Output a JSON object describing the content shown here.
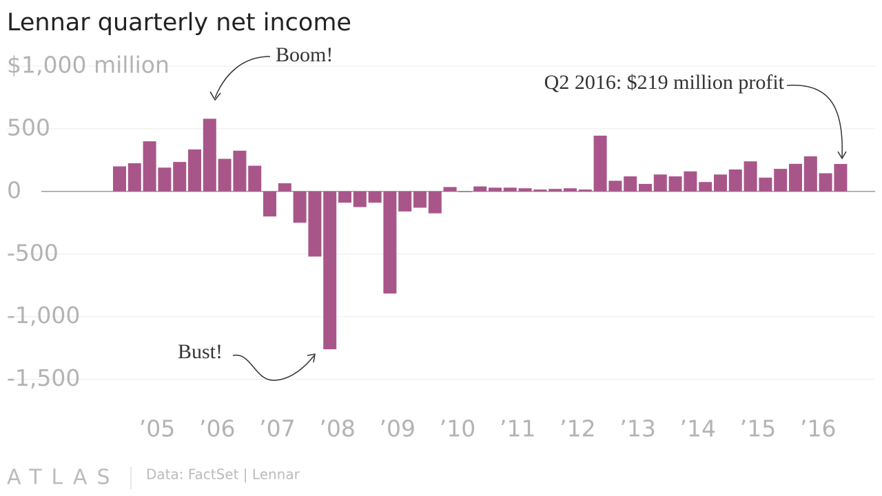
{
  "chart_data": {
    "type": "bar",
    "title": "Lennar quarterly net income",
    "categories": [
      null,
      null,
      "’05",
      null,
      null,
      null,
      "’06",
      null,
      null,
      null,
      "’07",
      null,
      null,
      null,
      "’08",
      null,
      null,
      null,
      "’09",
      null,
      null,
      null,
      "’10",
      null,
      null,
      null,
      "’11",
      null,
      null,
      null,
      "’12",
      null,
      null,
      null,
      "’13",
      null,
      null,
      null,
      "’14",
      null,
      null,
      null,
      "’15",
      null,
      null,
      null,
      "’16",
      null,
      null
    ],
    "values": [
      200,
      225,
      400,
      190,
      235,
      335,
      580,
      260,
      325,
      205,
      -200,
      65,
      -250,
      -520,
      -1260,
      -90,
      -125,
      -90,
      -815,
      -160,
      -130,
      -175,
      35,
      -5,
      40,
      30,
      30,
      25,
      15,
      20,
      25,
      15,
      445,
      85,
      120,
      60,
      135,
      120,
      160,
      75,
      135,
      175,
      240,
      110,
      180,
      220,
      280,
      145,
      219
    ],
    "color": "#a8568a",
    "ylim": [
      -1700,
      1000
    ],
    "yticks": [
      {
        "value": 1000,
        "label": "$1,000 million"
      },
      500,
      0,
      -500,
      {
        "value": -1000,
        "label": "-1,000"
      },
      {
        "value": -1500,
        "label": "-1,500"
      }
    ],
    "grid": true,
    "annotations": [
      "Boom!",
      "Bust!",
      "Q2 2016: $219 million profit"
    ],
    "logo": "ATLAS",
    "source": "Data: FactSet | Lennar"
  }
}
